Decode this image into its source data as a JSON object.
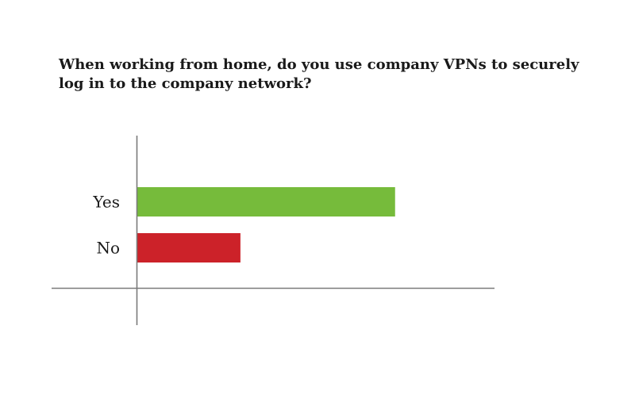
{
  "chart_data": {
    "type": "bar",
    "orientation": "horizontal",
    "title": "When working from home, do you use company VPNs to securely log in to the company network?",
    "categories": [
      "Yes",
      "No"
    ],
    "values": [
      75,
      30
    ],
    "colors": [
      "#76bb3b",
      "#cc2229"
    ],
    "xlim": [
      0,
      100
    ],
    "xlabel": "",
    "ylabel": "",
    "grid": false,
    "legend": "none"
  }
}
